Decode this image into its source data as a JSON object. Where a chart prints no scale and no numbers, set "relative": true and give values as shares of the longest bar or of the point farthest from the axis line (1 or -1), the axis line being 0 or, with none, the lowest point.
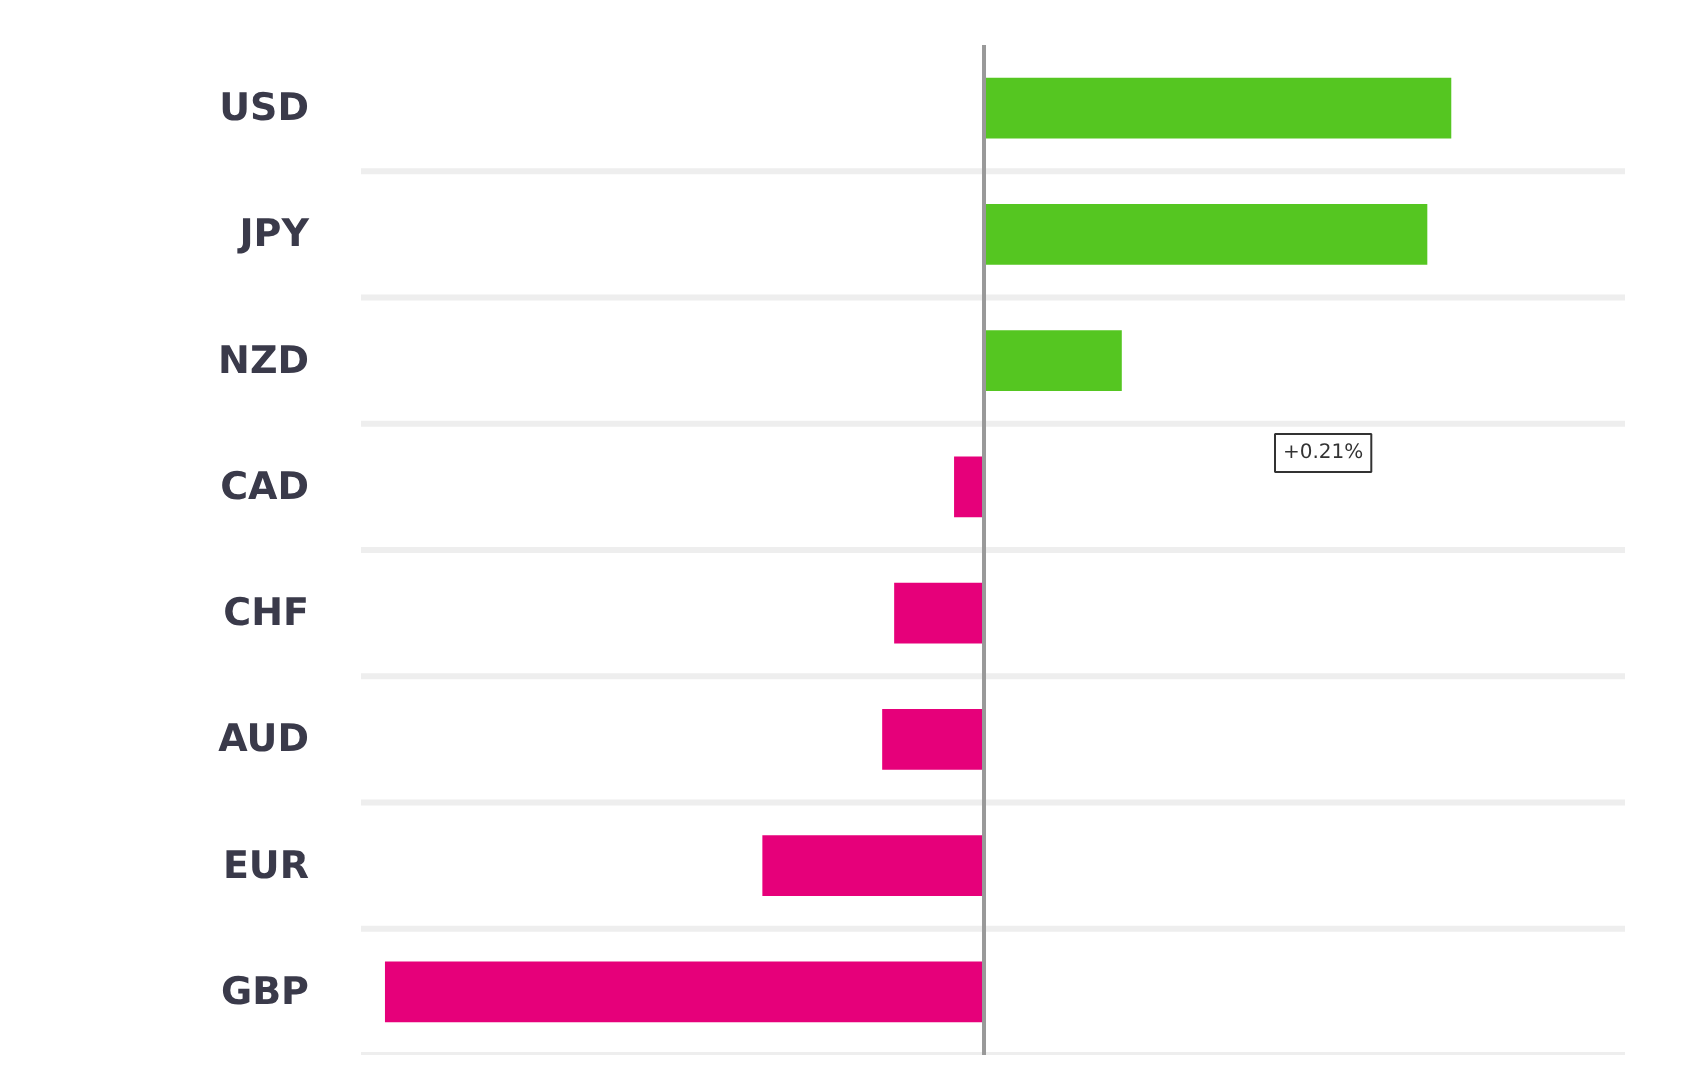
{
  "chart_data": {
    "type": "bar",
    "orientation": "horizontal",
    "relative": true,
    "categories": [
      "USD",
      "JPY",
      "NZD",
      "CAD",
      "CHF",
      "AUD",
      "EUR",
      "GBP"
    ],
    "values": [
      0.78,
      0.74,
      0.23,
      -0.05,
      -0.15,
      -0.17,
      -0.37,
      -1
    ],
    "colors": [
      "#55c621",
      "#55c621",
      "#55c621",
      "#e6007a",
      "#e6007a",
      "#e6007a",
      "#e6007a",
      "#e6007a"
    ],
    "grid": "y",
    "annotations": [
      "+0.21%"
    ]
  }
}
